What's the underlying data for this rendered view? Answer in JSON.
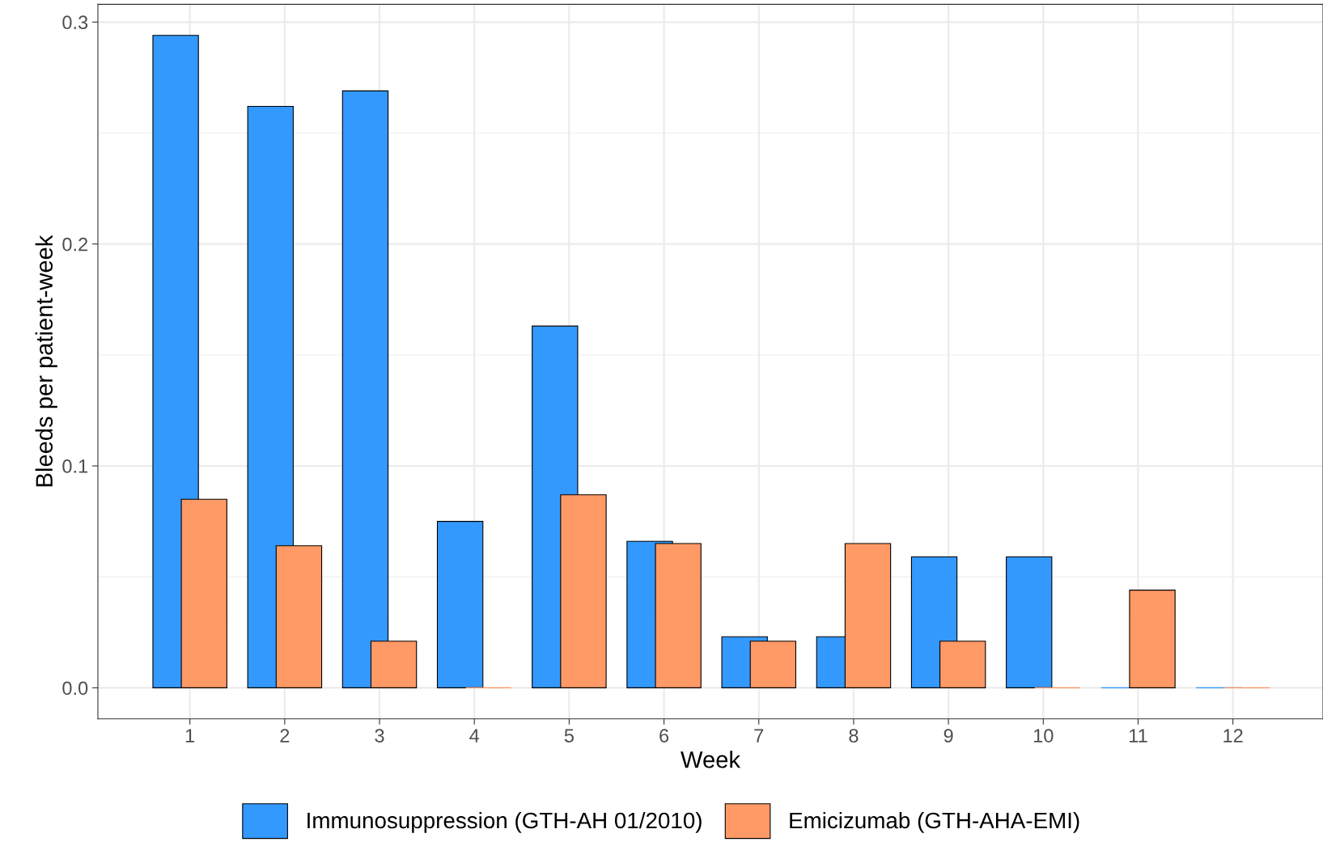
{
  "chart_data": {
    "type": "bar",
    "xlabel": "Week",
    "ylabel": "Bleeds per patient-week",
    "categories": [
      "1",
      "2",
      "3",
      "4",
      "5",
      "6",
      "7",
      "8",
      "9",
      "10",
      "11",
      "12"
    ],
    "series": [
      {
        "name": "Immunosuppression (GTH-AH 01/2010)",
        "color": "#3399ff",
        "values": [
          0.294,
          0.262,
          0.269,
          0.075,
          0.163,
          0.066,
          0.023,
          0.023,
          0.059,
          0.059,
          0,
          0
        ]
      },
      {
        "name": "Emicizumab (GTH-AHA-EMI)",
        "color": "#ff9966",
        "values": [
          0.085,
          0.064,
          0.021,
          0,
          0.087,
          0.065,
          0.021,
          0.065,
          0.021,
          0,
          0.044,
          0
        ]
      }
    ],
    "ylim": [
      -0.014,
      0.308
    ],
    "yticks": [
      {
        "value": 0,
        "label": "0.0"
      },
      0.1,
      0.2,
      0.3
    ],
    "grid": true,
    "legend": "bottom"
  }
}
